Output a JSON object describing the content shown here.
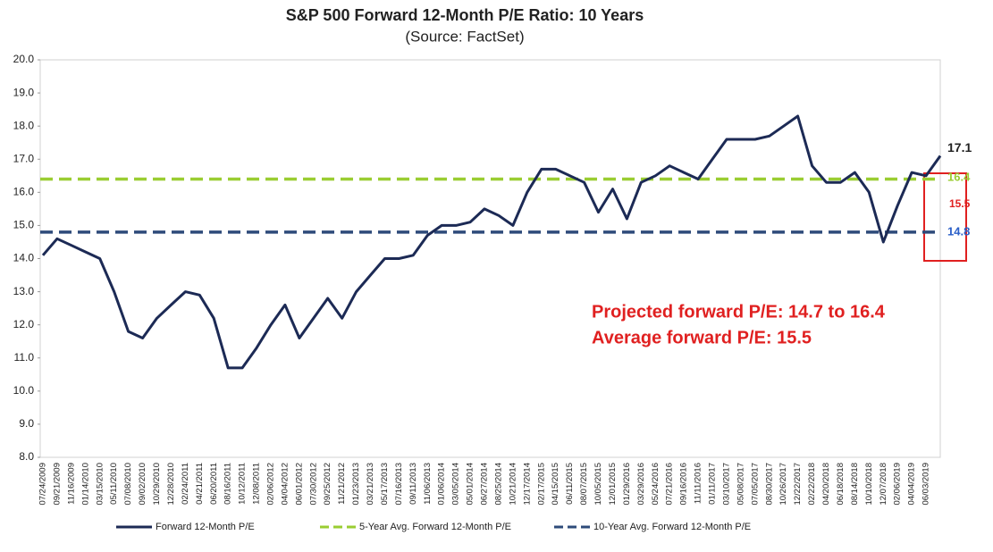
{
  "chart_data": {
    "type": "line",
    "title": "S&P 500 Forward 12-Month P/E Ratio: 10 Years",
    "subtitle": "(Source: FactSet)",
    "categories": [
      "07/24/2009",
      "09/21/2009",
      "11/16/2009",
      "01/14/2010",
      "03/15/2010",
      "05/11/2010",
      "07/08/2010",
      "09/02/2010",
      "10/29/2010",
      "12/28/2010",
      "02/24/2011",
      "04/21/2011",
      "06/20/2011",
      "08/16/2011",
      "10/12/2011",
      "12/08/2011",
      "02/06/2012",
      "04/04/2012",
      "06/01/2012",
      "07/30/2012",
      "09/25/2012",
      "11/21/2012",
      "01/23/2013",
      "03/21/2013",
      "05/17/2013",
      "07/16/2013",
      "09/11/2013",
      "11/06/2013",
      "01/06/2014",
      "03/05/2014",
      "05/01/2014",
      "06/27/2014",
      "08/25/2014",
      "10/21/2014",
      "12/17/2014",
      "02/17/2015",
      "04/15/2015",
      "06/11/2015",
      "08/07/2015",
      "10/05/2015",
      "12/01/2015",
      "01/29/2016",
      "03/29/2016",
      "05/24/2016",
      "07/21/2016",
      "09/16/2016",
      "11/11/2016",
      "01/11/2017",
      "03/10/2017",
      "05/08/2017",
      "07/05/2017",
      "08/30/2017",
      "10/26/2017",
      "12/22/2017",
      "02/22/2018",
      "04/20/2018",
      "06/18/2018",
      "08/14/2018",
      "10/10/2018",
      "12/07/2018",
      "02/06/2019",
      "04/04/2019",
      "06/03/2019",
      null
    ],
    "series": [
      {
        "name": "Forward 12-Month P/E",
        "color": "#1c2a55",
        "values": [
          14.1,
          14.6,
          14.4,
          14.2,
          14.0,
          13.0,
          11.8,
          11.6,
          12.2,
          12.6,
          13.0,
          12.9,
          12.2,
          10.7,
          10.7,
          11.3,
          12.0,
          12.6,
          11.6,
          12.2,
          12.8,
          12.2,
          13.0,
          13.5,
          14.0,
          14.0,
          14.1,
          14.7,
          15.0,
          15.0,
          15.1,
          15.5,
          15.3,
          15.0,
          16.0,
          16.7,
          16.7,
          16.5,
          16.3,
          15.4,
          16.1,
          15.2,
          16.3,
          16.5,
          16.8,
          16.6,
          16.4,
          17.0,
          17.6,
          17.6,
          17.6,
          17.7,
          18.0,
          18.3,
          16.8,
          16.3,
          16.3,
          16.6,
          16.0,
          14.5,
          15.6,
          16.6,
          16.5,
          17.1
        ]
      }
    ],
    "reference_lines": [
      {
        "name": "5-Year Avg. Forward 12-Month P/E",
        "color": "#9acd32",
        "value": 16.4
      },
      {
        "name": "10-Year Avg. Forward 12-Month P/E",
        "color": "#2e4b7a",
        "value": 14.8
      }
    ],
    "average_label": 15.5,
    "annotations": [
      "Projected forward P/E: 14.7 to 16.4",
      "Average forward P/E: 15.5"
    ],
    "ylim": [
      8,
      20
    ],
    "yticks": [
      {
        "value": 8,
        "label": "8.0"
      },
      {
        "value": 9,
        "label": "9.0"
      },
      {
        "value": 10,
        "label": "10.0"
      },
      {
        "value": 11,
        "label": "11.0"
      },
      {
        "value": 12,
        "label": "12.0"
      },
      {
        "value": 13,
        "label": "13.0"
      },
      {
        "value": 14,
        "label": "14.0"
      },
      {
        "value": 15,
        "label": "15.0"
      },
      {
        "value": 16,
        "label": "16.0"
      },
      {
        "value": 17,
        "label": "17.0"
      },
      {
        "value": 18,
        "label": "18.0"
      },
      {
        "value": 19,
        "label": "19.0"
      },
      {
        "value": 20,
        "label": "20.0"
      }
    ],
    "grid": false
  }
}
